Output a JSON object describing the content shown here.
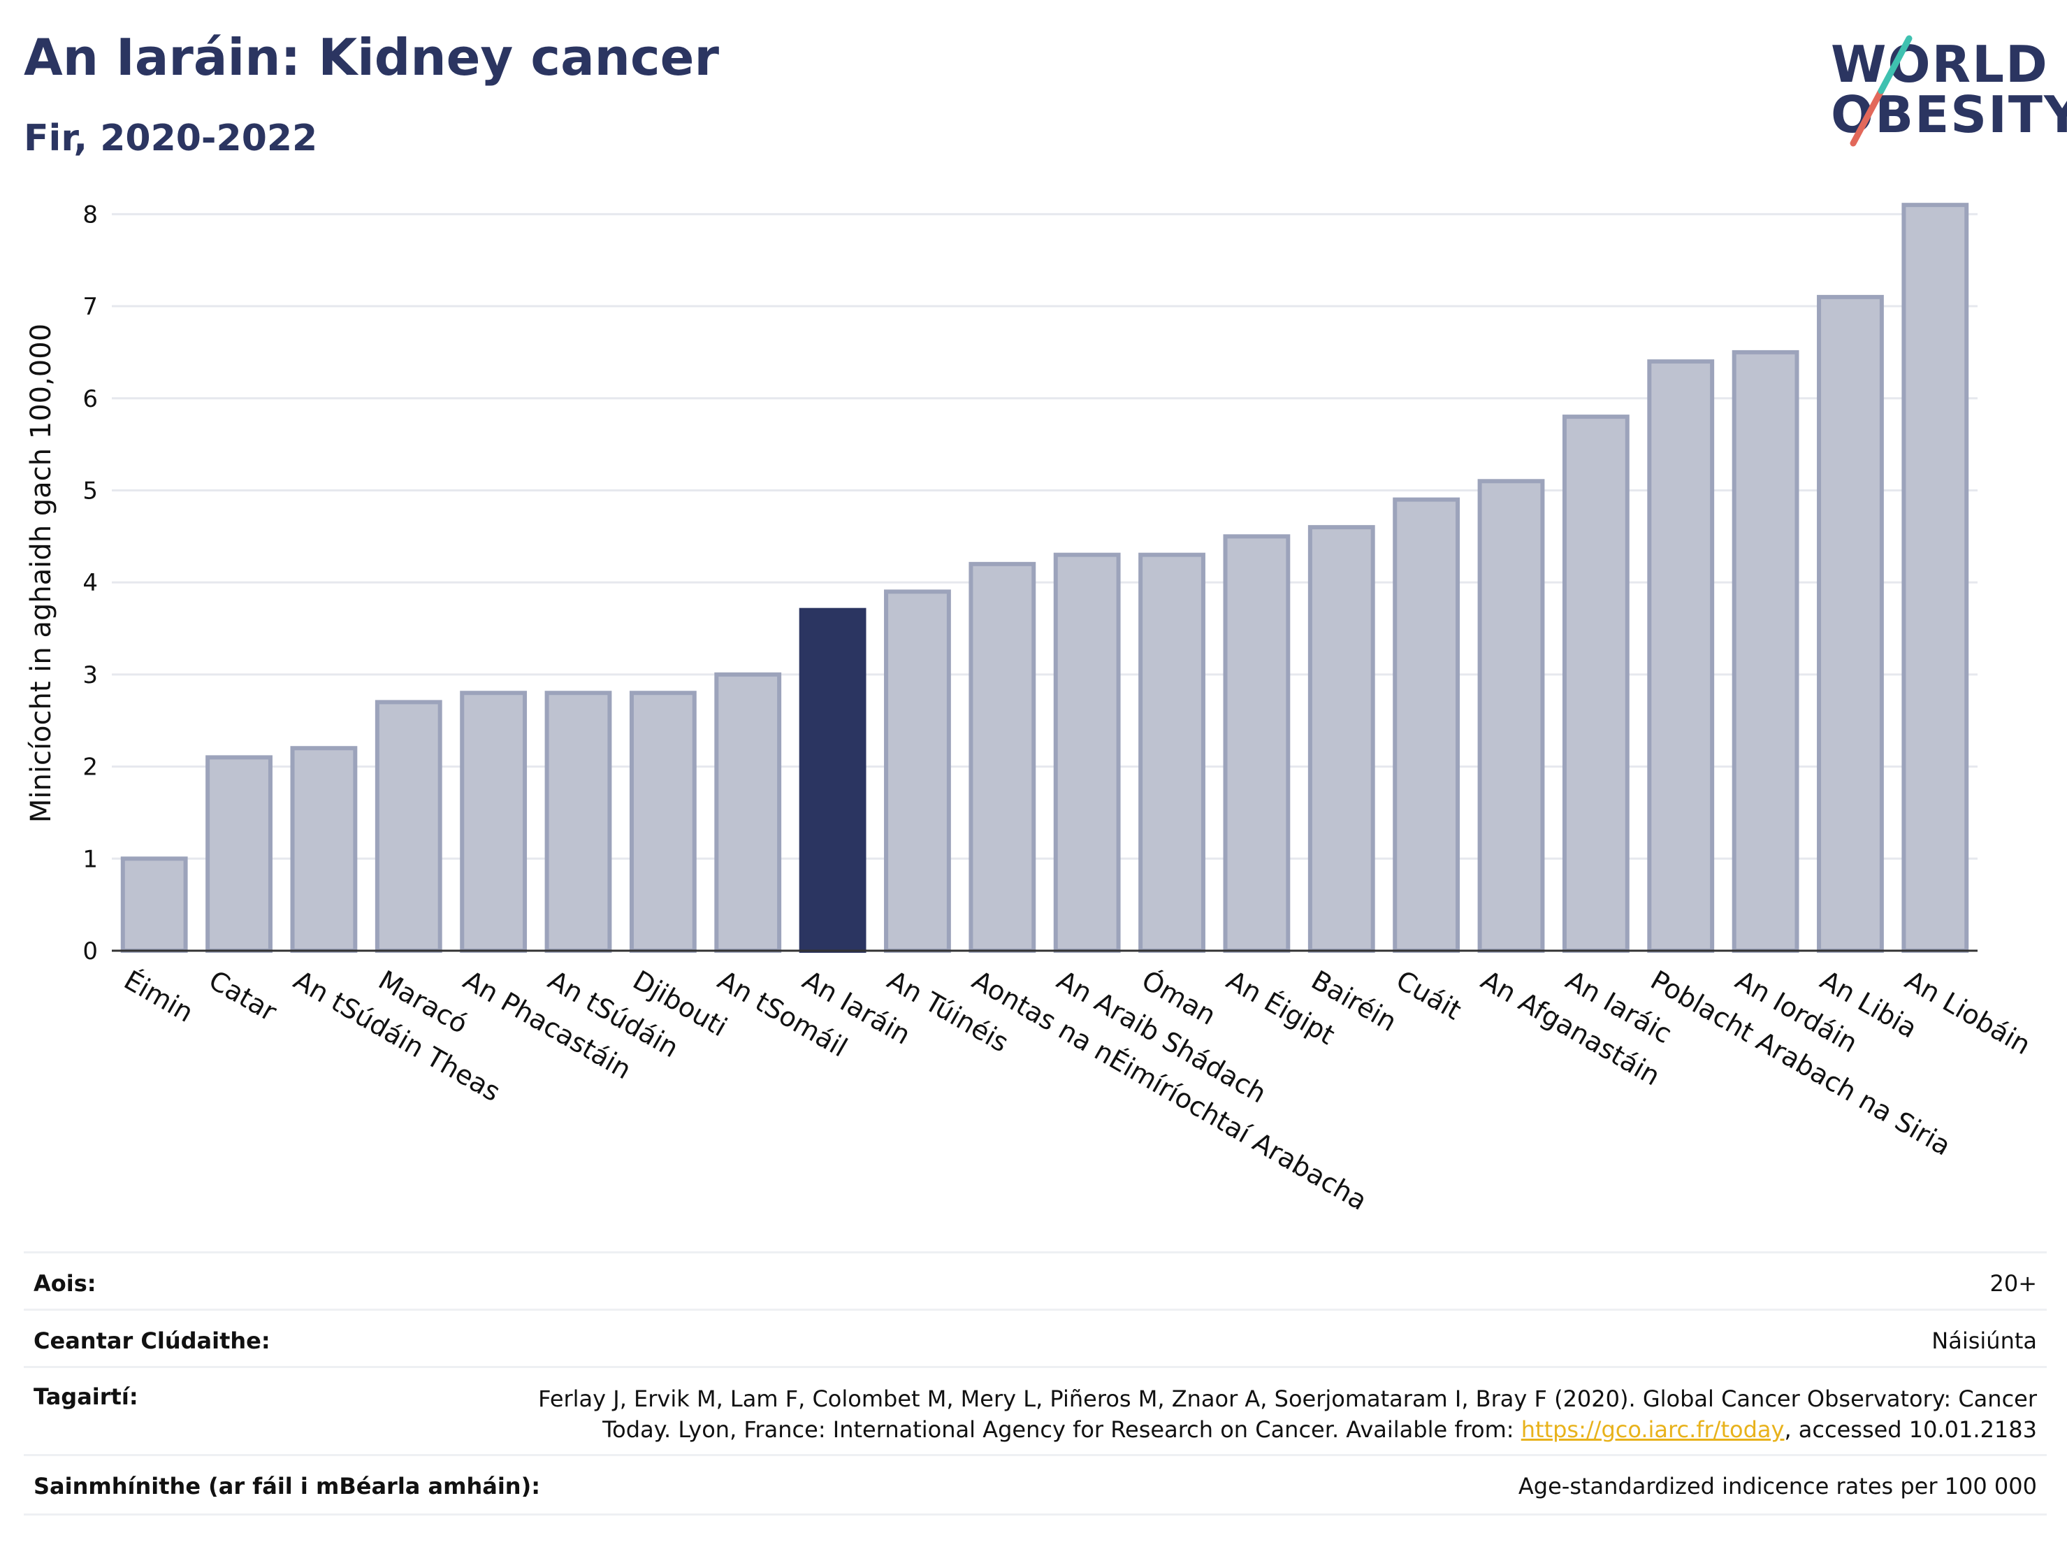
{
  "header": {
    "title": "An Iaráin: Kidney cancer",
    "subtitle": "Fir, 2020-2022"
  },
  "logo": {
    "line1": "WORLD",
    "line2": "OBESITY",
    "accent_colors": [
      "#e2685a",
      "#3fc1b0"
    ]
  },
  "colors": {
    "highlight": "#2b3561",
    "bar": "#bec2d0",
    "bar_edge": "#9ca3bb",
    "grid": "#e6e8ee",
    "text": "#111111"
  },
  "chart_data": {
    "type": "bar",
    "ylabel": "Minicíocht in aghaidh gach 100,000",
    "ylim": [
      0,
      8.2
    ],
    "yticks": [
      0,
      1,
      2,
      3,
      4,
      5,
      6,
      7,
      8
    ],
    "grid": true,
    "highlight_category": "An Iaráin",
    "categories": [
      "Éimin",
      "Catar",
      "An tSúdáin Theas",
      "Maracó",
      "An Phacastáin",
      "An tSúdáin",
      "Djibouti",
      "An tSomáil",
      "An Iaráin",
      "An Túinéis",
      "Aontas na nÉimíríochtaí Arabacha",
      "An Araib Shádach",
      "Óman",
      "An Éigipt",
      "Bairéin",
      "Cuáit",
      "An Afganastáin",
      "An Iaráic",
      "Poblacht Arabach na Siria",
      "An Iordáin",
      "An Libia",
      "An Liobáin"
    ],
    "values": [
      1.0,
      2.1,
      2.2,
      2.7,
      2.8,
      2.8,
      2.8,
      3.0,
      3.7,
      3.9,
      4.2,
      4.3,
      4.3,
      4.5,
      4.6,
      4.9,
      5.1,
      5.8,
      6.4,
      6.5,
      7.1,
      8.1
    ]
  },
  "meta": {
    "age": {
      "label": "Aois:",
      "value": "20+"
    },
    "coverage": {
      "label": "Ceantar Clúdaithe:",
      "value": "Náisiúnta"
    },
    "references": {
      "label": "Tagairtí:",
      "line1": "Ferlay J, Ervik M, Lam F, Colombet M, Mery L, Piñeros M, Znaor A, Soerjomataram I, Bray F (2020). Global Cancer Observatory: Cancer",
      "line2_pre": "Today. Lyon, France: International Agency for Research on Cancer. Available from: ",
      "link": "https://gco.iarc.fr/today",
      "line2_post": ", accessed 10.01.2183"
    },
    "definitions": {
      "label": "Sainmhínithe (ar fáil i mBéarla amháin):",
      "value": "Age-standardized indicence rates per 100 000"
    }
  }
}
